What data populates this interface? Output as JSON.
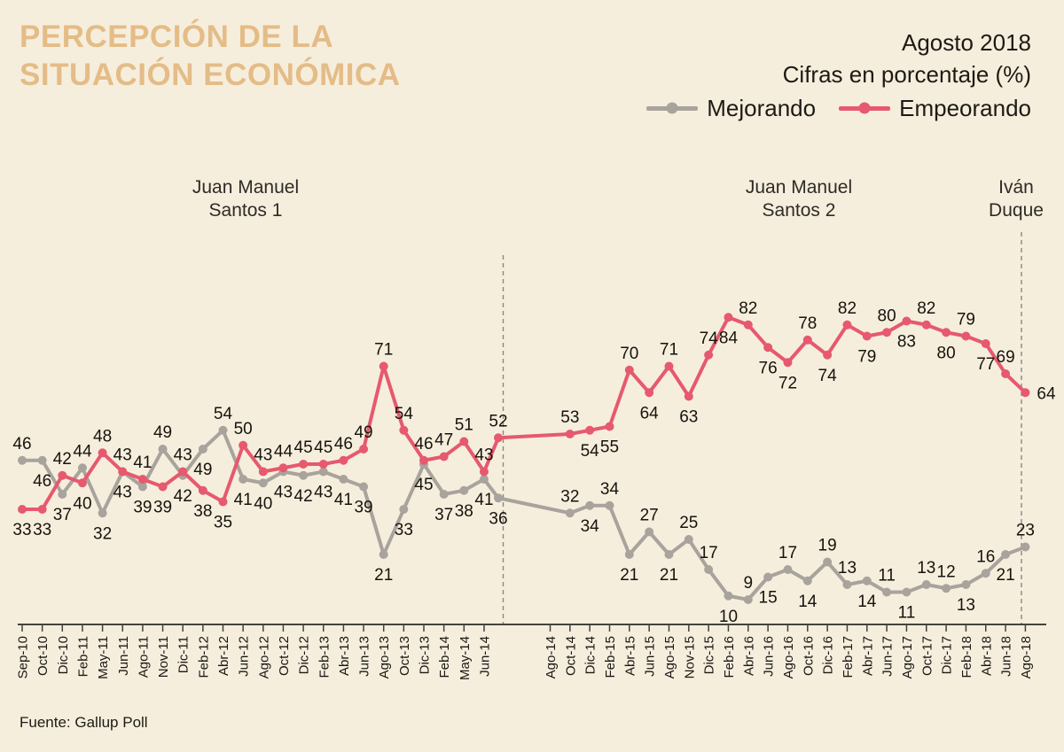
{
  "header": {
    "title_line1": "PERCEPCIÓN DE LA",
    "title_line2": "SITUACIÓN ECONÓMICA",
    "date_label": "Agosto 2018",
    "subtitle": "Cifras en porcentaje (%)",
    "legend": [
      {
        "label": "Mejorando",
        "color": "#a8a39c"
      },
      {
        "label": "Empeorando",
        "color": "#e6596e"
      }
    ]
  },
  "chart_data": {
    "type": "line",
    "title": "Percepción de la situación económica",
    "units": "percent",
    "grid": false,
    "legend_position": "top-right",
    "ylim": [
      5,
      90
    ],
    "section1_count": 24,
    "x_labels": [
      "Sep-10",
      "Oct-10",
      "Dic-10",
      "Feb-11",
      "May-11",
      "Jun-11",
      "Ago-11",
      "Nov-11",
      "Dic-11",
      "Feb-12",
      "Abr-12",
      "Jun-12",
      "Ago-12",
      "Oct-12",
      "Dic-12",
      "Feb-13",
      "Abr-13",
      "Jun-13",
      "Ago-13",
      "Oct-13",
      "Dic-13",
      "Feb-14",
      "May-14",
      "Jun-14",
      "Ago-14",
      "Oct-14",
      "Dic-14",
      "Feb-15",
      "Abr-15",
      "Jun-15",
      "Ago-15",
      "Nov-15",
      "Dic-15",
      "Feb-16",
      "Abr-16",
      "Jun-16",
      "Ago-16",
      "Oct-16",
      "Dic-16",
      "Feb-17",
      "Abr-17",
      "Jun-17",
      "Ago-17",
      "Oct-17",
      "Dic-17",
      "Feb-18",
      "Abr-18",
      "Jun-18",
      "Ago-18"
    ],
    "series": [
      {
        "name": "Mejorando",
        "color": "#a8a39c",
        "values": [
          46,
          46,
          37,
          44,
          32,
          43,
          39,
          49,
          42,
          49,
          54,
          41,
          40,
          43,
          42,
          43,
          41,
          39,
          21,
          33,
          45,
          37,
          38,
          41,
          36,
          32,
          34,
          34,
          21,
          27,
          21,
          25,
          17,
          10,
          9,
          15,
          17,
          14,
          19,
          13,
          14,
          11,
          11,
          13,
          12,
          13,
          16,
          21,
          23
        ],
        "label_pos": [
          "a",
          "b",
          "b",
          "a",
          "b",
          "b",
          "b",
          "a",
          "b",
          "b",
          "a",
          "b",
          "b",
          "b",
          "b",
          "b",
          "b",
          "b",
          "b",
          "b",
          "b",
          "b",
          "b",
          "b",
          "b",
          "a",
          "b",
          "a",
          "b",
          "a",
          "b",
          "a",
          "a",
          "b",
          "a",
          "b",
          "a",
          "b",
          "a",
          "a",
          "b",
          "a",
          "b",
          "a",
          "a",
          "b",
          "a",
          "b",
          "a"
        ]
      },
      {
        "name": "Empeorando",
        "color": "#e6596e",
        "values": [
          33,
          33,
          42,
          40,
          48,
          43,
          41,
          39,
          43,
          38,
          35,
          50,
          43,
          44,
          45,
          45,
          46,
          49,
          71,
          54,
          46,
          47,
          51,
          43,
          52,
          53,
          54,
          55,
          70,
          64,
          71,
          63,
          74,
          84,
          82,
          76,
          72,
          78,
          74,
          82,
          79,
          80,
          83,
          82,
          80,
          79,
          77,
          69,
          64
        ],
        "label_pos": [
          "b",
          "b",
          "a",
          "b",
          "a",
          "a",
          "a",
          "b",
          "a",
          "b",
          "b",
          "a",
          "a",
          "a",
          "a",
          "a",
          "a",
          "a",
          "a",
          "a",
          "a",
          "a",
          "a",
          "a",
          "a",
          "a",
          "b",
          "b",
          "a",
          "b",
          "a",
          "b",
          "a",
          "b",
          "a",
          "b",
          "b",
          "a",
          "b",
          "a",
          "b",
          "a",
          "b",
          "a",
          "b",
          "a",
          "b",
          "a",
          "r"
        ]
      }
    ],
    "annotations": [
      {
        "line1": "Juan Manuel",
        "line2": "Santos 1"
      },
      {
        "line1": "Juan Manuel",
        "line2": "Santos 2"
      },
      {
        "line1": "Iván",
        "line2": "Duque"
      }
    ]
  },
  "footer": {
    "source": "Fuente: Gallup Poll"
  }
}
